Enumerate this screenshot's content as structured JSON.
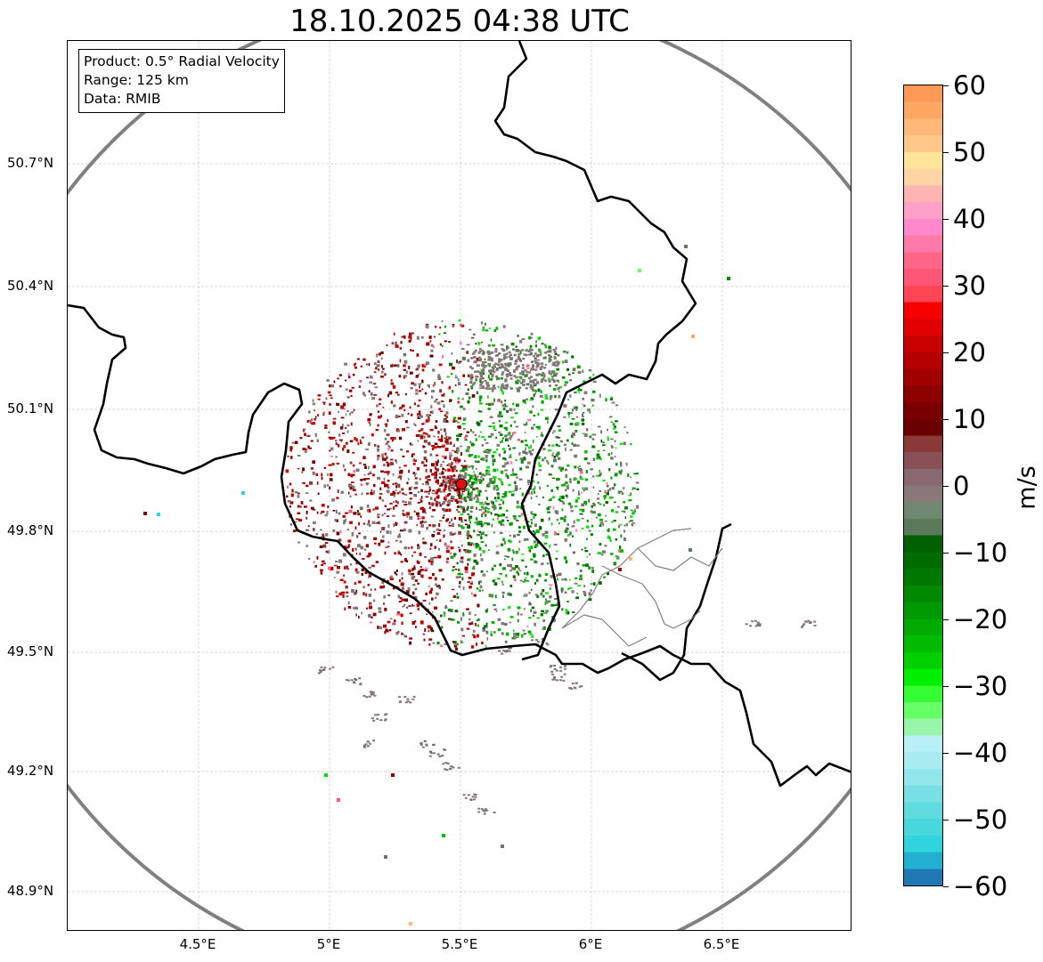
{
  "title": "18.10.2025 04:38 UTC",
  "info": {
    "product": "Product: 0.5° Radial Velocity",
    "range": "Range: 125 km",
    "source": "Data: RMIB"
  },
  "axes": {
    "lat_ticks": [
      "50.7°N",
      "50.4°N",
      "50.1°N",
      "49.8°N",
      "49.5°N",
      "49.2°N",
      "48.9°N"
    ],
    "lon_ticks": [
      "4.5°E",
      "5°E",
      "5.5°E",
      "6°E",
      "6.5°E"
    ]
  },
  "colorbar": {
    "unit": "m/s",
    "labels": [
      "60",
      "50",
      "40",
      "30",
      "20",
      "10",
      "0",
      "−10",
      "−20",
      "−30",
      "−40",
      "−50",
      "−60"
    ],
    "range": [
      -60,
      60
    ]
  },
  "colors": {
    "range_ring": "#808080",
    "border": "#000000",
    "radar_site": "#dd1111"
  },
  "chart_data": {
    "type": "map",
    "title": "18.10.2025 04:38 UTC",
    "product": "0.5° Radial Velocity",
    "range_km": 125,
    "radar_site": {
      "lon": 5.5,
      "lat": 49.91
    },
    "extent": {
      "lon": [
        4.0,
        7.0
      ],
      "lat": [
        48.8,
        51.0
      ]
    }
  }
}
